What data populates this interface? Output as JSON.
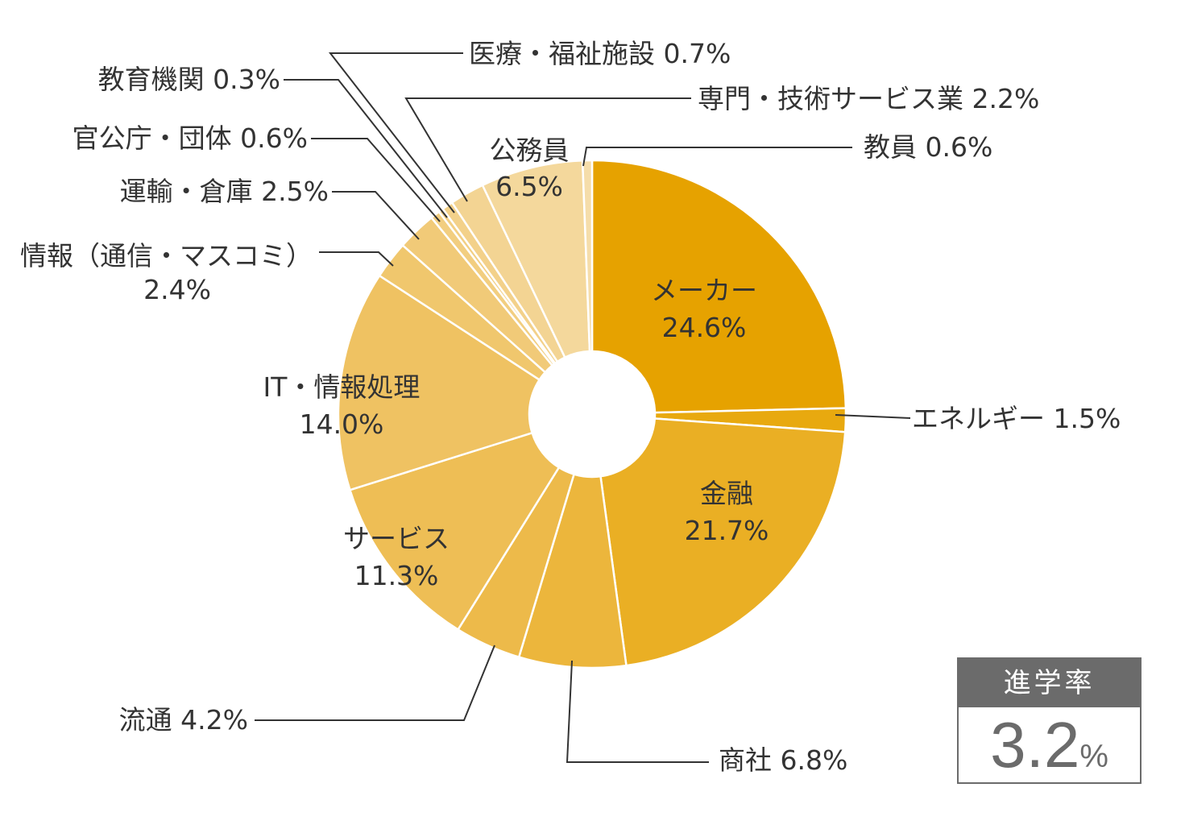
{
  "chart_data": {
    "type": "pie",
    "donut": true,
    "slices": [
      {
        "name": "メーカー",
        "value": 24.6,
        "color": "#E6A200"
      },
      {
        "name": "エネルギー",
        "value": 1.5,
        "color": "#E8A90F"
      },
      {
        "name": "金融",
        "value": 21.7,
        "color": "#EAAF24"
      },
      {
        "name": "商社",
        "value": 6.8,
        "color": "#ECB63C"
      },
      {
        "name": "流通",
        "value": 4.2,
        "color": "#EDBA4A"
      },
      {
        "name": "サービス",
        "value": 11.3,
        "color": "#EEBE55"
      },
      {
        "name": "IT・情報処理",
        "value": 14.0,
        "color": "#EFC262"
      },
      {
        "name": "情報(通信・マスコミ)",
        "value": 2.4,
        "color": "#F0C76D"
      },
      {
        "name": "運輸・倉庫",
        "value": 2.5,
        "color": "#F1CA78"
      },
      {
        "name": "官公庁・団体",
        "value": 0.6,
        "color": "#F2CE80"
      },
      {
        "name": "教育機関",
        "value": 0.3,
        "color": "#F2CF84"
      },
      {
        "name": "医療・福祉施設",
        "value": 0.7,
        "color": "#F3D18A"
      },
      {
        "name": "専門・技術サービス業",
        "value": 2.2,
        "color": "#F3D493"
      },
      {
        "name": "公務員",
        "value": 6.5,
        "color": "#F4D89C"
      },
      {
        "name": "教員",
        "value": 0.6,
        "color": "#F5DDAA"
      }
    ],
    "labels": {
      "maker": [
        "メーカー",
        "24.6%"
      ],
      "energy": [
        "エネルギー 1.5%"
      ],
      "finance": [
        "金融",
        "21.7%"
      ],
      "shosha": [
        "商社 6.8%"
      ],
      "ryutsu": [
        "流通 4.2%"
      ],
      "service": [
        "サービス",
        "11.3%"
      ],
      "it": [
        "IT・情報処理",
        "14.0%"
      ],
      "info": [
        "情報（通信・マスコミ）",
        "2.4%"
      ],
      "transport": [
        "運輸・倉庫 2.5%"
      ],
      "gov": [
        "官公庁・団体 0.6%"
      ],
      "edu": [
        "教育機関 0.3%"
      ],
      "medical": [
        "医療・福祉施設 0.7%"
      ],
      "pro": [
        "専門・技術サービス業 2.2%"
      ],
      "civil": [
        "公務員",
        "6.5%"
      ],
      "teacher": [
        "教員 0.6%"
      ]
    }
  },
  "rate_box": {
    "title": "進学率",
    "value": "3.2",
    "unit": "%"
  }
}
